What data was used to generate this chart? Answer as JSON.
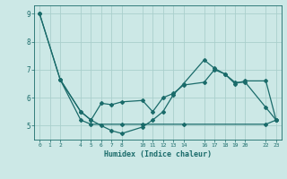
{
  "xlabel": "Humidex (Indice chaleur)",
  "bg_color": "#cce8e6",
  "grid_color": "#aacfcc",
  "line_color": "#1a6b6a",
  "xticks": [
    0,
    1,
    2,
    4,
    5,
    6,
    7,
    8,
    10,
    11,
    12,
    13,
    14,
    16,
    17,
    18,
    19,
    20,
    22,
    23
  ],
  "xlim": [
    -0.5,
    23.5
  ],
  "ylim": [
    4.5,
    9.3
  ],
  "yticks": [
    5,
    6,
    7,
    8,
    9
  ],
  "line1_x": [
    0,
    2,
    4,
    5,
    6,
    7,
    8,
    10,
    11,
    12,
    13,
    14,
    16,
    17,
    18,
    19,
    20,
    22,
    23
  ],
  "line1_y": [
    9.0,
    6.65,
    5.5,
    5.2,
    5.8,
    5.75,
    5.85,
    5.9,
    5.5,
    6.0,
    6.15,
    6.45,
    6.55,
    7.0,
    6.85,
    6.5,
    6.6,
    6.6,
    5.2
  ],
  "line2_x": [
    0,
    2,
    4,
    5,
    6,
    7,
    8,
    10,
    11,
    12,
    13,
    14,
    16,
    17,
    18,
    19,
    20,
    22,
    23
  ],
  "line2_y": [
    9.0,
    6.65,
    5.5,
    5.2,
    5.0,
    4.82,
    4.72,
    4.95,
    5.2,
    5.5,
    6.1,
    6.5,
    7.35,
    7.05,
    6.85,
    6.55,
    6.55,
    5.65,
    5.2
  ],
  "line3_x": [
    2,
    4,
    5,
    8,
    10,
    14,
    22,
    23
  ],
  "line3_y": [
    6.65,
    5.2,
    5.05,
    5.05,
    5.05,
    5.05,
    5.05,
    5.2
  ]
}
